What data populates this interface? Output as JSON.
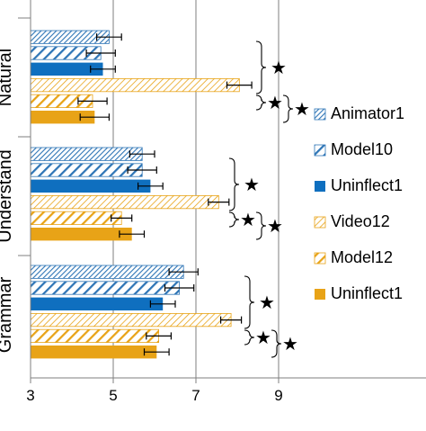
{
  "chart_data": {
    "type": "bar",
    "orientation": "horizontal",
    "groups": [
      "Natural",
      "Understand",
      "Grammar"
    ],
    "series": [
      {
        "name": "Animator1",
        "color": "#2E75B6",
        "pattern": "dense-hatch",
        "values": [
          4.9,
          5.7,
          6.7
        ],
        "errors": [
          0.3,
          0.3,
          0.35
        ]
      },
      {
        "name": "Model10",
        "color": "#2E75B6",
        "pattern": "wide-hatch",
        "values": [
          4.7,
          5.7,
          6.6
        ],
        "errors": [
          0.35,
          0.35,
          0.35
        ]
      },
      {
        "name": "Uninflect1",
        "color": "#0F6FBF",
        "pattern": "solid",
        "values": [
          4.75,
          5.9,
          6.2
        ],
        "errors": [
          0.3,
          0.3,
          0.3
        ]
      },
      {
        "name": "Video12",
        "color": "#E8A317",
        "pattern": "light-hatch",
        "values": [
          8.05,
          7.55,
          7.85
        ],
        "errors": [
          0.3,
          0.25,
          0.25
        ]
      },
      {
        "name": "Model12",
        "color": "#E8A317",
        "pattern": "wide-hatch",
        "values": [
          4.5,
          5.2,
          6.1
        ],
        "errors": [
          0.35,
          0.25,
          0.3
        ]
      },
      {
        "name": "Uninflect1",
        "color": "#E8A317",
        "pattern": "solid",
        "values": [
          4.55,
          5.45,
          6.05
        ],
        "errors": [
          0.35,
          0.3,
          0.3
        ]
      }
    ],
    "xlim": [
      3,
      10
    ],
    "xticks": [
      "3",
      "5",
      "7",
      "9"
    ],
    "grid": true,
    "legend": "right",
    "annotation": "★"
  }
}
